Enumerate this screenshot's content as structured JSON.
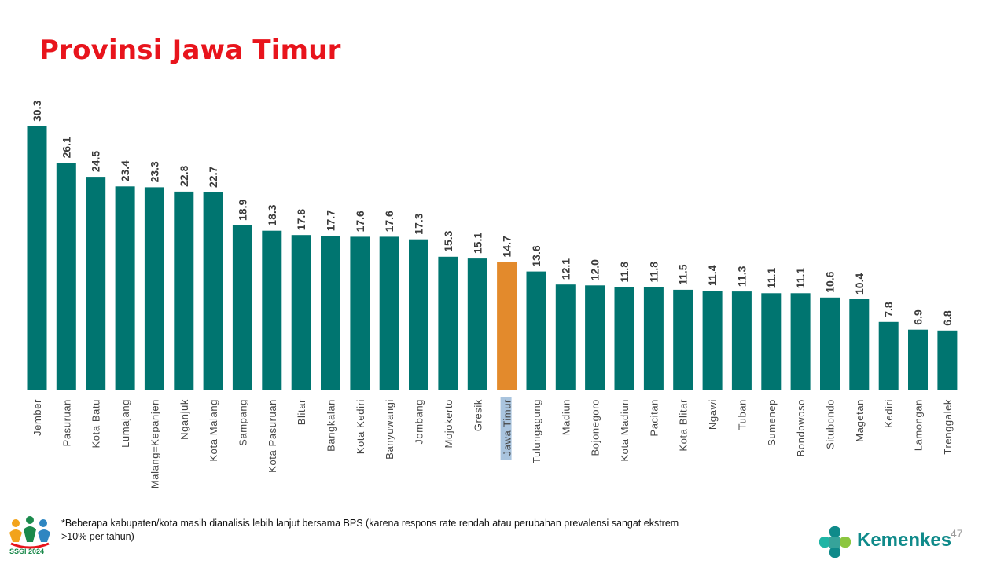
{
  "title": "Provinsi Jawa Timur",
  "colors": {
    "bar": "#007570",
    "highlight_bar": "#e38a2c",
    "highlight_label_bg": "#a9c4de",
    "title": "#e8141c",
    "axis": "#b0b0b0"
  },
  "chart_data": {
    "type": "bar",
    "title": "",
    "xlabel": "",
    "ylabel": "",
    "ylim": [
      0,
      30.3
    ],
    "grid": false,
    "legend": "none",
    "highlight_category": "Jawa Timur",
    "categories": [
      "Jember",
      "Pasuruan",
      "Kota Batu",
      "Lumajang",
      "Malang=Kepanjen",
      "Nganjuk",
      "Kota Malang",
      "Sampang",
      "Kota Pasuruan",
      "Blitar",
      "Bangkalan",
      "Kota Kediri",
      "Banyuwangi",
      "Jombang",
      "Mojokerto",
      "Gresik",
      "Jawa Timur",
      "Tulungagung",
      "Madiun",
      "Bojonegoro",
      "Kota Madiun",
      "Pacitan",
      "Kota Blitar",
      "Ngawi",
      "Tuban",
      "Sumenep",
      "Bondowoso",
      "Situbondo",
      "Magetan",
      "Kediri",
      "Lamongan",
      "Trenggalek"
    ],
    "values": [
      30.3,
      26.1,
      24.5,
      23.4,
      23.3,
      22.8,
      22.7,
      18.9,
      18.3,
      17.8,
      17.7,
      17.6,
      17.6,
      17.3,
      15.3,
      15.1,
      14.7,
      13.6,
      12.1,
      12.0,
      11.8,
      11.8,
      11.5,
      11.4,
      11.3,
      11.1,
      11.1,
      10.6,
      10.4,
      7.8,
      6.9,
      6.8
    ],
    "value_labels": [
      "30.3",
      "26.1",
      "24.5",
      "23.4",
      "23.3",
      "22.8",
      "22.7",
      "18.9",
      "18.3",
      "17.8",
      "17.7",
      "17.6",
      "17.6",
      "17.3",
      "15.3",
      "15.1",
      "14.7",
      "13.6",
      "12.1",
      "12.0",
      "11.8",
      "11.8",
      "11.5",
      "11.4",
      "11.3",
      "11.1",
      "11.1",
      "10.6",
      "10.4",
      "7.8",
      "6.9",
      "6.8"
    ]
  },
  "footnote": {
    "line1": "*Beberapa kabupaten/kota masih dianalisis lebih lanjut bersama BPS (karena respons rate rendah atau perubahan prevalensi sangat ekstrem",
    "line2": ">10% per tahun)"
  },
  "logos": {
    "left_text": "SSGI 2024",
    "left_icon": "ssgi-family-icon",
    "right_text": "Kemenkes",
    "right_icon": "kemenkes-cross-icon"
  },
  "page_number": "47"
}
